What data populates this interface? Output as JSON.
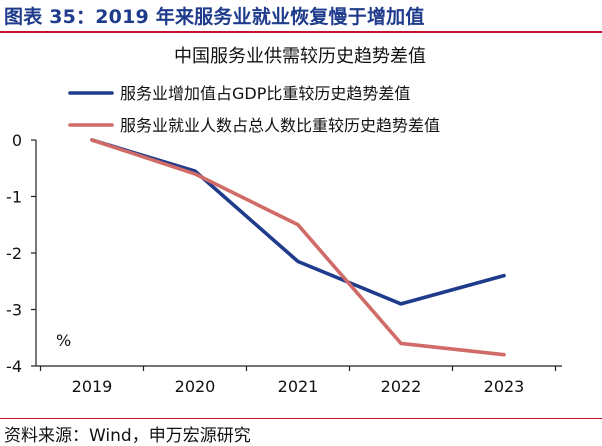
{
  "figure": {
    "title": "图表 35：2019 年来服务业就业恢复慢于增加值",
    "source": "资料来源：Wind，申万宏源研究"
  },
  "chart_data": {
    "type": "line",
    "title": "中国服务业供需较历史趋势差值",
    "unit": "%",
    "x": [
      "2019",
      "2020",
      "2021",
      "2022",
      "2023"
    ],
    "ylim": [
      -4,
      0
    ],
    "yticks": [
      "0",
      "-1",
      "-2",
      "-3",
      "-4"
    ],
    "ytick_values": [
      0,
      -1,
      -2,
      -3,
      -4
    ],
    "series": [
      {
        "name": "服务业增加值占GDP比重较历史趋势差值",
        "color": "#1f3b8c",
        "values": [
          0,
          -0.55,
          -2.15,
          -2.9,
          -2.4
        ]
      },
      {
        "name": "服务业就业人数占总人数比重较历史趋势差值",
        "color": "#d06b68",
        "values": [
          0,
          -0.6,
          -1.5,
          -3.6,
          -3.8
        ]
      }
    ],
    "legend_position": "top-left",
    "grid": false
  }
}
